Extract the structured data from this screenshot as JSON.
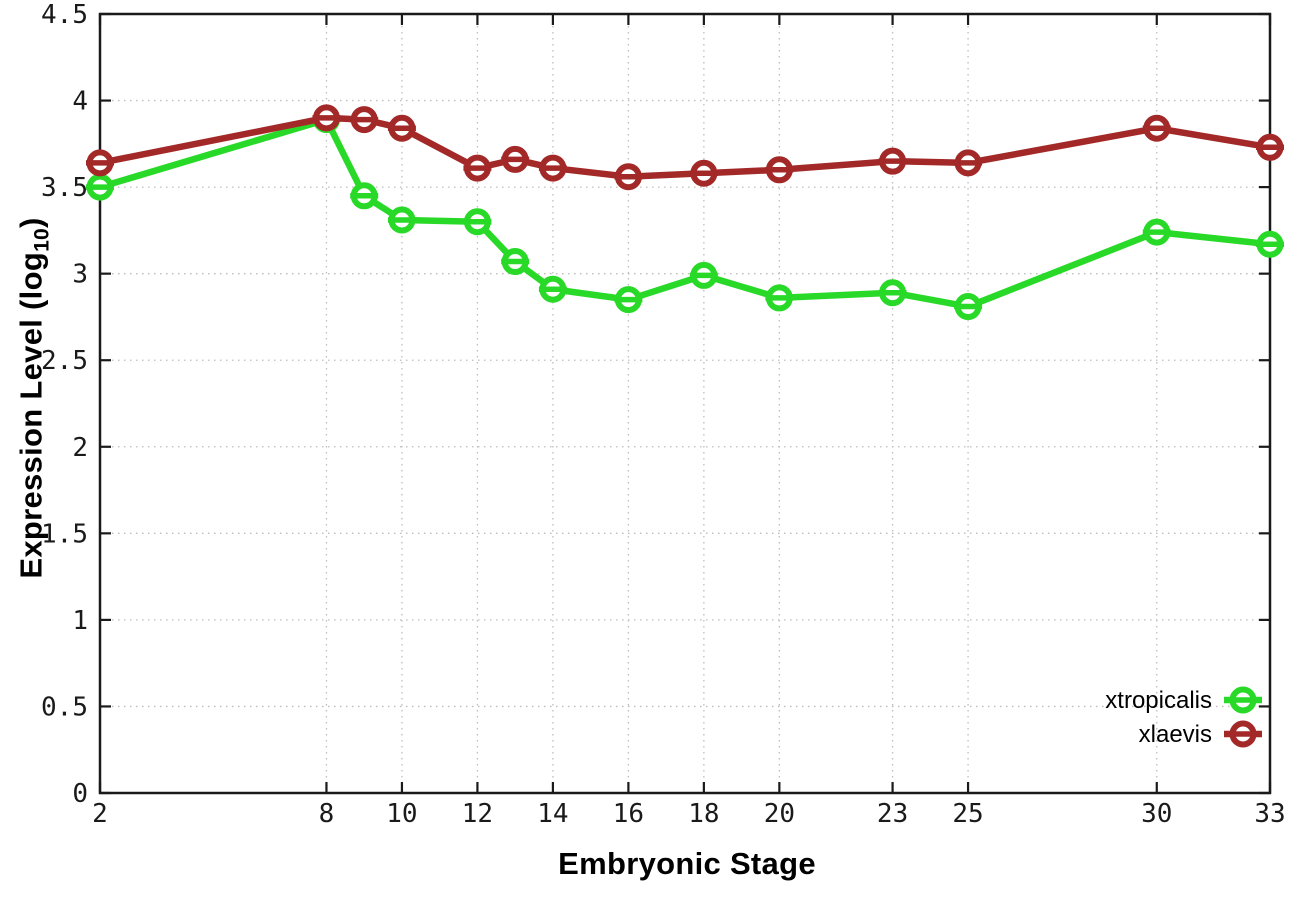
{
  "chart_data": {
    "type": "line",
    "title": "",
    "xlabel": "Embryonic Stage",
    "ylabel": "Expression Level (log10)",
    "ylabel_parts": {
      "pre": "Expression Level (log",
      "sub": "10",
      "post": ")"
    },
    "xlim": [
      2,
      33
    ],
    "ylim": [
      0,
      4.5
    ],
    "grid": true,
    "legend_position": "bottom-right",
    "marker_style": "open-circle-with-horizontal-bar",
    "x": [
      2,
      8,
      9,
      10,
      12,
      13,
      14,
      16,
      18,
      20,
      23,
      25,
      30,
      33
    ],
    "xticks": [
      "2",
      "8",
      "10",
      "12",
      "14",
      "16",
      "18",
      "20",
      "23",
      "25",
      "30",
      "33"
    ],
    "xtick_values": [
      2,
      8,
      10,
      12,
      14,
      16,
      18,
      20,
      23,
      25,
      30,
      33
    ],
    "yticks": [
      "0",
      "0.5",
      "1",
      "1.5",
      "2",
      "2.5",
      "3",
      "3.5",
      "4",
      "4.5"
    ],
    "ytick_values": [
      0,
      0.5,
      1,
      1.5,
      2,
      2.5,
      3,
      3.5,
      4,
      4.5
    ],
    "series": [
      {
        "name": "xtropicalis",
        "color": "#28d928",
        "values": [
          3.5,
          3.89,
          3.45,
          3.31,
          3.3,
          3.07,
          2.91,
          2.85,
          2.99,
          2.86,
          2.89,
          2.81,
          3.24,
          3.17
        ]
      },
      {
        "name": "xlaevis",
        "color": "#a32929",
        "values": [
          3.64,
          3.9,
          3.89,
          3.84,
          3.61,
          3.66,
          3.61,
          3.56,
          3.58,
          3.6,
          3.65,
          3.64,
          3.84,
          3.73
        ]
      }
    ],
    "colors": {
      "grid": "#bdbdbd",
      "axis": "#1a1a1a",
      "background": "#ffffff"
    }
  }
}
